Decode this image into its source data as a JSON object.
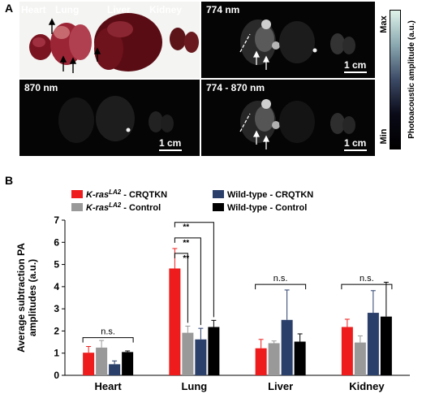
{
  "panel_a": {
    "label": "A",
    "photo_labels": [
      "Heart",
      "Lung",
      "Liver",
      "Kidney"
    ],
    "tiles": [
      {
        "title": "",
        "scalebar": ""
      },
      {
        "title": "774 nm",
        "scalebar": "1 cm"
      },
      {
        "title": "870 nm",
        "scalebar": "1 cm"
      },
      {
        "title": "774 - 870 nm",
        "scalebar": "1 cm"
      }
    ],
    "colorbar": {
      "max_label": "Max",
      "min_label": "Min",
      "title": "Photoacoustic amplitude (a.u.)"
    }
  },
  "panel_b": {
    "label": "B"
  },
  "chart_data": {
    "type": "bar",
    "ylabel": "Average subtraction PA amplitudes (a.u.)",
    "ylim": [
      0,
      7
    ],
    "yticks": [
      0,
      1,
      2,
      3,
      4,
      5,
      6,
      7
    ],
    "categories": [
      "Heart",
      "Lung",
      "Liver",
      "Kidney"
    ],
    "legend": [
      {
        "prefix": "K-ras",
        "sup": "LA2",
        "suffix": " - CRQTKN",
        "color": "#ee1c1c"
      },
      {
        "prefix": "K-ras",
        "sup": "LA2",
        "suffix": " - Control",
        "color": "#999999"
      },
      {
        "prefix": "Wild-type - CRQTKN",
        "sup": "",
        "suffix": "",
        "color": "#2b3f6b"
      },
      {
        "prefix": "Wild-type - Control",
        "sup": "",
        "suffix": "",
        "color": "#000000"
      }
    ],
    "series": [
      {
        "values": [
          1.02,
          4.82,
          1.22,
          2.18
        ],
        "errors": [
          0.28,
          0.9,
          0.4,
          0.35
        ],
        "color": "#ee1c1c"
      },
      {
        "values": [
          1.25,
          1.92,
          1.45,
          1.48
        ],
        "errors": [
          0.32,
          0.3,
          0.1,
          0.3
        ],
        "color": "#999999"
      },
      {
        "values": [
          0.5,
          1.62,
          2.5,
          2.82
        ],
        "errors": [
          0.15,
          0.5,
          1.35,
          1.0
        ],
        "color": "#2b3f6b"
      },
      {
        "values": [
          1.05,
          2.18,
          1.52,
          2.65
        ],
        "errors": [
          0.05,
          0.3,
          0.35,
          1.55
        ],
        "color": "#000000"
      }
    ],
    "annotations": [
      {
        "text": "n.s.",
        "category": 0
      },
      {
        "text": "**",
        "category": 1
      },
      {
        "text": "**",
        "category": 1
      },
      {
        "text": "**",
        "category": 1
      },
      {
        "text": "n.s.",
        "category": 2
      },
      {
        "text": "n.s.",
        "category": 3
      }
    ]
  }
}
